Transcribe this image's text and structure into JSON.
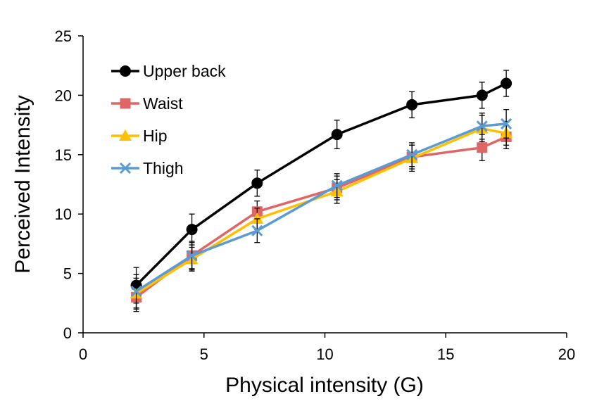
{
  "chart_data": {
    "type": "line",
    "xlabel": "Physical intensity (G)",
    "ylabel": "Perceived Intensity",
    "xlim": [
      0,
      20
    ],
    "ylim": [
      0,
      25
    ],
    "xticks": [
      0,
      5,
      10,
      15,
      20
    ],
    "yticks": [
      0,
      5,
      10,
      15,
      20,
      25
    ],
    "grid": false,
    "legend_position": "top-left",
    "x": [
      2.2,
      4.5,
      7.2,
      10.5,
      13.6,
      16.5,
      17.5
    ],
    "series": [
      {
        "name": "Upper back",
        "color": "#000000",
        "marker": "circle",
        "values": [
          4.0,
          8.7,
          12.6,
          16.7,
          19.2,
          20.0,
          21.0
        ],
        "errors": [
          1.5,
          1.3,
          1.1,
          1.2,
          1.1,
          1.1,
          1.1
        ]
      },
      {
        "name": "Waist",
        "color": "#e06666",
        "marker": "square",
        "values": [
          3.0,
          6.5,
          10.2,
          12.2,
          14.8,
          15.6,
          16.5
        ],
        "errors": [
          1.2,
          1.1,
          0.9,
          1.0,
          1.0,
          1.1,
          1.0
        ]
      },
      {
        "name": "Hip",
        "color": "#ffc000",
        "marker": "triangle",
        "values": [
          3.3,
          6.2,
          9.6,
          11.9,
          14.7,
          17.2,
          16.8
        ],
        "errors": [
          1.3,
          1.0,
          0.9,
          1.0,
          1.1,
          1.1,
          1.0
        ]
      },
      {
        "name": "Thigh",
        "color": "#5b9bd5",
        "marker": "x",
        "values": [
          3.5,
          6.5,
          8.6,
          12.4,
          15.0,
          17.4,
          17.6
        ],
        "errors": [
          1.4,
          1.2,
          1.0,
          1.0,
          1.0,
          1.1,
          1.2
        ]
      }
    ]
  }
}
